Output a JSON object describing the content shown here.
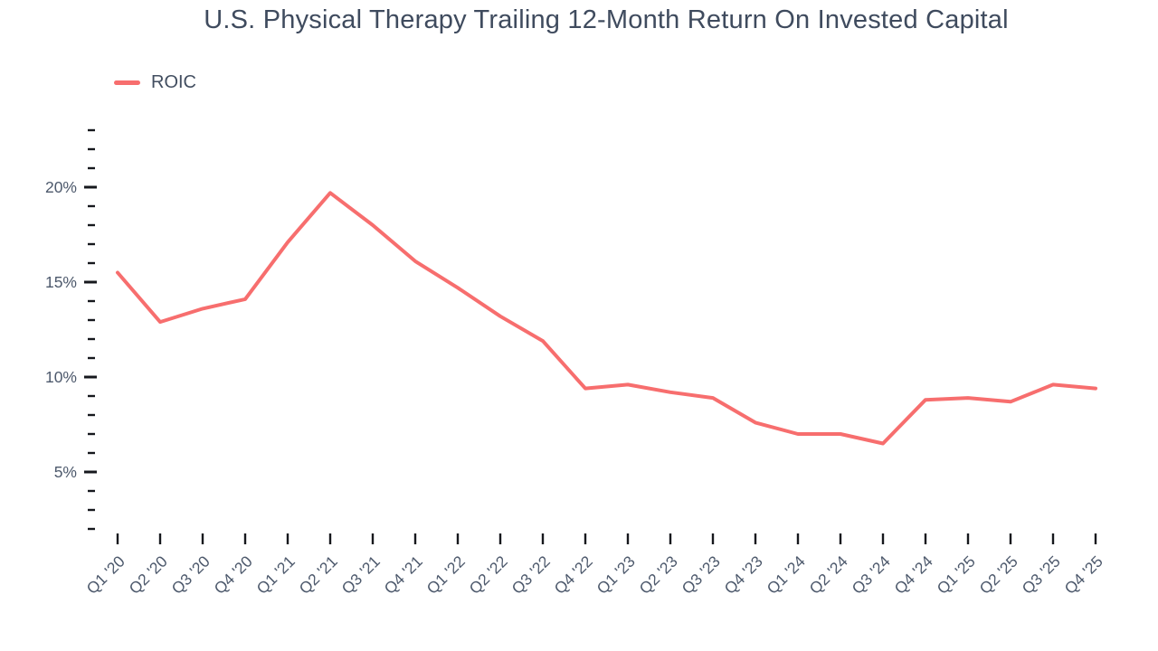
{
  "chart_data": {
    "type": "line",
    "title": "U.S. Physical Therapy Trailing 12-Month Return On Invested Capital",
    "categories": [
      "Q1 '20",
      "Q2 '20",
      "Q3 '20",
      "Q4 '20",
      "Q1 '21",
      "Q2 '21",
      "Q3 '21",
      "Q4 '21",
      "Q1 '22",
      "Q2 '22",
      "Q3 '22",
      "Q4 '22",
      "Q1 '23",
      "Q2 '23",
      "Q3 '23",
      "Q4 '23",
      "Q1 '24",
      "Q2 '24",
      "Q3 '24",
      "Q4 '24",
      "Q1 '25",
      "Q2 '25",
      "Q3 '25",
      "Q4 '25"
    ],
    "series": [
      {
        "name": "ROIC",
        "color": "#f76e6e",
        "values": [
          15.5,
          12.9,
          13.6,
          14.1,
          17.1,
          19.7,
          18.0,
          16.1,
          14.7,
          13.2,
          11.9,
          9.4,
          9.6,
          9.2,
          8.9,
          7.6,
          7.0,
          7.0,
          6.5,
          8.8,
          8.9,
          8.7,
          9.6,
          9.4
        ]
      }
    ],
    "xlabel": "",
    "ylabel": "",
    "y_major_ticks": [
      5,
      10,
      15,
      20
    ],
    "y_major_tick_labels": [
      "5%",
      "10%",
      "15%",
      "20%"
    ],
    "y_minor_tick_step": 1,
    "ylim": [
      2,
      23
    ],
    "grid": false,
    "legend_position": "top-left",
    "x_label_rotation_deg": -45
  },
  "colors": {
    "accent": "#f76e6e",
    "title_text": "#3f4b5e",
    "axis_label_text": "#4d596c",
    "tick_mark": "#16181d",
    "background": "#ffffff"
  }
}
